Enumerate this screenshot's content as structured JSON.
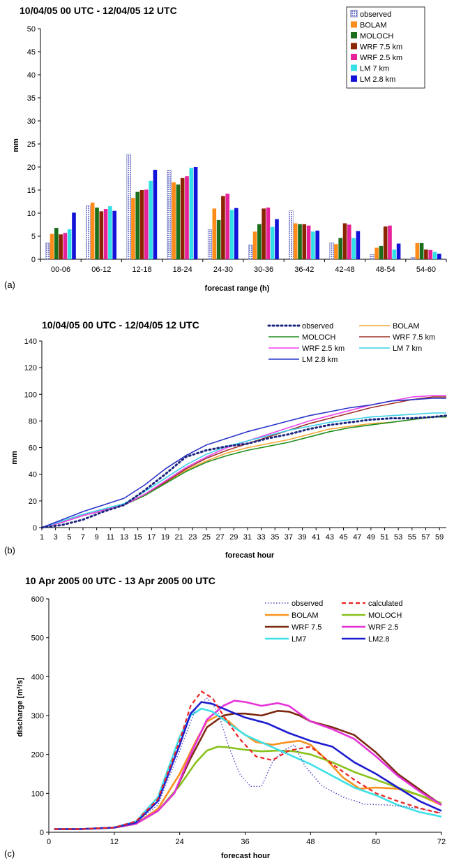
{
  "chart_data": [
    {
      "type": "bar",
      "title": "10/04/05 00 UTC - 12/04/05 12 UTC",
      "panel_label": "(a)",
      "xlabel": "forecast range (h)",
      "ylabel": "mm",
      "ylim": [
        0,
        50
      ],
      "yticks": [
        "0",
        "5",
        "10",
        "15",
        "20",
        "25",
        "30",
        "35",
        "40",
        "45",
        "50"
      ],
      "legend_position": "top-right",
      "categories": [
        "00-06",
        "06-12",
        "12-18",
        "18-24",
        "24-30",
        "30-36",
        "36-42",
        "42-48",
        "48-54",
        "54-60"
      ],
      "series": [
        {
          "name": "observed",
          "color": "#aab0e0",
          "values": [
            3.5,
            11.6,
            22.8,
            19.3,
            6.4,
            3.1,
            10.5,
            3.6,
            1.0,
            0.4
          ]
        },
        {
          "name": "BOLAM",
          "color": "#ff8c1a",
          "values": [
            5.5,
            12.3,
            13.3,
            16.7,
            11.0,
            6.0,
            7.8,
            3.3,
            2.5,
            3.5
          ]
        },
        {
          "name": "MOLOCH",
          "color": "#1a6e1a",
          "values": [
            6.8,
            11.2,
            14.6,
            16.2,
            8.5,
            7.6,
            7.6,
            4.6,
            2.9,
            3.5
          ]
        },
        {
          "name": "WRF 7.5 km",
          "color": "#8b2500",
          "values": [
            5.4,
            10.4,
            15.0,
            17.6,
            13.7,
            11.0,
            7.6,
            7.8,
            7.1,
            2.1
          ]
        },
        {
          "name": "WRF 2.5 km",
          "color": "#e6219a",
          "values": [
            5.7,
            10.9,
            15.1,
            18.0,
            14.2,
            11.2,
            7.3,
            7.5,
            7.3,
            2.0
          ]
        },
        {
          "name": "LM 7 km",
          "color": "#33e0e8",
          "values": [
            6.5,
            11.5,
            17.0,
            19.8,
            10.7,
            7.0,
            6.0,
            4.6,
            2.1,
            1.6
          ]
        },
        {
          "name": "LM 2.8 km",
          "color": "#1212d9",
          "values": [
            10.1,
            10.5,
            19.4,
            20.0,
            11.1,
            8.7,
            6.2,
            6.1,
            3.4,
            1.2
          ]
        }
      ]
    },
    {
      "type": "line",
      "title": "10/04/05 00 UTC - 12/04/05 12 UTC",
      "panel_label": "(b)",
      "xlabel": "forecast hour",
      "ylabel": "mm",
      "ylim": [
        0,
        140
      ],
      "xlim": [
        1,
        60
      ],
      "yticks": [
        "0",
        "20",
        "40",
        "60",
        "80",
        "100",
        "120",
        "140"
      ],
      "xticks": [
        "1",
        "3",
        "5",
        "7",
        "9",
        "11",
        "13",
        "15",
        "17",
        "19",
        "21",
        "23",
        "25",
        "27",
        "29",
        "31",
        "33",
        "35",
        "37",
        "39",
        "41",
        "43",
        "45",
        "47",
        "49",
        "51",
        "53",
        "55",
        "57",
        "59"
      ],
      "legend_position": "top-right",
      "series": [
        {
          "name": "observed",
          "color": "#1a237e",
          "style": "dotted",
          "x": [
            1,
            4,
            7,
            10,
            13,
            16,
            19,
            22,
            25,
            28,
            31,
            34,
            37,
            40,
            43,
            46,
            49,
            52,
            55,
            58,
            60
          ],
          "y": [
            0,
            2,
            6,
            12,
            17,
            28,
            40,
            53,
            58,
            61,
            63,
            67,
            70,
            74,
            77,
            79,
            81,
            82,
            82,
            83,
            84
          ]
        },
        {
          "name": "BOLAM",
          "color": "#f4a535",
          "style": "solid",
          "x": [
            1,
            4,
            7,
            10,
            13,
            16,
            19,
            22,
            25,
            28,
            31,
            34,
            37,
            40,
            43,
            46,
            49,
            52,
            55,
            58,
            60
          ],
          "y": [
            0,
            4,
            9,
            13,
            17,
            25,
            34,
            43,
            50,
            56,
            60,
            63,
            66,
            70,
            74,
            76,
            78,
            79,
            81,
            83,
            84
          ]
        },
        {
          "name": "MOLOCH",
          "color": "#1f8f1f",
          "style": "solid",
          "x": [
            1,
            4,
            7,
            10,
            13,
            16,
            19,
            22,
            25,
            28,
            31,
            34,
            37,
            40,
            43,
            46,
            49,
            52,
            55,
            58,
            60
          ],
          "y": [
            0,
            4,
            9,
            13,
            17,
            24,
            33,
            42,
            49,
            54,
            58,
            61,
            64,
            68,
            72,
            75,
            77,
            79,
            81,
            83,
            83
          ]
        },
        {
          "name": "WRF 7.5 km",
          "color": "#a0302a",
          "style": "solid",
          "x": [
            1,
            4,
            7,
            10,
            13,
            16,
            19,
            22,
            25,
            28,
            31,
            34,
            37,
            40,
            43,
            46,
            49,
            52,
            55,
            58,
            60
          ],
          "y": [
            0,
            4,
            9,
            13,
            17,
            25,
            34,
            44,
            52,
            58,
            63,
            68,
            73,
            78,
            82,
            86,
            90,
            93,
            96,
            98,
            98
          ]
        },
        {
          "name": "WRF 2.5 km",
          "color": "#ee44ee",
          "style": "solid",
          "x": [
            1,
            4,
            7,
            10,
            13,
            16,
            19,
            22,
            25,
            28,
            31,
            34,
            37,
            40,
            43,
            46,
            49,
            52,
            55,
            58,
            60
          ],
          "y": [
            0,
            4,
            9,
            13,
            17,
            25,
            35,
            45,
            53,
            60,
            65,
            70,
            75,
            80,
            84,
            88,
            92,
            95,
            98,
            99,
            99
          ]
        },
        {
          "name": "LM 7 km",
          "color": "#3ed0e8",
          "style": "solid",
          "x": [
            1,
            4,
            7,
            10,
            13,
            16,
            19,
            22,
            25,
            28,
            31,
            34,
            37,
            40,
            43,
            46,
            49,
            52,
            55,
            58,
            60
          ],
          "y": [
            0,
            5,
            10,
            14,
            18,
            27,
            37,
            47,
            55,
            61,
            65,
            69,
            73,
            76,
            79,
            81,
            83,
            84,
            85,
            86,
            86
          ]
        },
        {
          "name": "LM 2.8 km",
          "color": "#2a34c8",
          "style": "solid",
          "x": [
            1,
            4,
            7,
            10,
            13,
            16,
            19,
            22,
            25,
            28,
            31,
            34,
            37,
            40,
            43,
            46,
            49,
            52,
            55,
            58,
            60
          ],
          "y": [
            0,
            6,
            12,
            17,
            22,
            32,
            44,
            54,
            62,
            67,
            72,
            76,
            80,
            84,
            87,
            90,
            92,
            95,
            96,
            97,
            97
          ]
        }
      ]
    },
    {
      "type": "line",
      "title": "10 Apr 2005 00 UTC - 13 Apr 2005 00 UTC",
      "panel_label": "(c)",
      "xlabel": "forecast hour",
      "ylabel": "discharge [m³/s]",
      "ylim": [
        0,
        600
      ],
      "xlim": [
        0,
        72
      ],
      "yticks": [
        "0",
        "100",
        "200",
        "300",
        "400",
        "500",
        "600"
      ],
      "xticks": [
        "0",
        "12",
        "24",
        "36",
        "48",
        "60",
        "72"
      ],
      "legend_position": "top-right",
      "series": [
        {
          "name": "observed",
          "color": "#4a4ac0",
          "style": "dotted",
          "x": [
            1,
            6,
            12,
            16,
            20,
            24,
            27,
            29,
            31,
            33,
            35,
            37,
            39,
            41,
            43,
            45,
            47,
            50,
            54,
            58,
            62,
            66,
            70,
            72
          ],
          "y": [
            8,
            8,
            12,
            25,
            70,
            210,
            320,
            345,
            310,
            220,
            150,
            118,
            118,
            180,
            210,
            225,
            170,
            120,
            90,
            72,
            70,
            65,
            55,
            50
          ]
        },
        {
          "name": "calculated",
          "color": "#ee2222",
          "style": "dashed",
          "x": [
            1,
            6,
            12,
            16,
            20,
            24,
            26,
            28,
            30,
            32,
            35,
            38,
            41,
            44,
            48,
            52,
            56,
            60,
            64,
            68,
            72
          ],
          "y": [
            8,
            8,
            12,
            28,
            85,
            235,
            325,
            362,
            345,
            300,
            240,
            195,
            185,
            210,
            220,
            175,
            135,
            100,
            80,
            62,
            48
          ]
        },
        {
          "name": "BOLAM",
          "color": "#f7921e",
          "style": "solid",
          "x": [
            1,
            6,
            12,
            16,
            20,
            24,
            27,
            29,
            31,
            33,
            35,
            38,
            41,
            44,
            46,
            48,
            51,
            54,
            57,
            60,
            64,
            68,
            72
          ],
          "y": [
            8,
            8,
            12,
            22,
            60,
            150,
            235,
            285,
            300,
            285,
            260,
            232,
            225,
            232,
            235,
            225,
            185,
            140,
            112,
            115,
            112,
            95,
            70
          ]
        },
        {
          "name": "MOLOCH",
          "color": "#88c21c",
          "style": "solid",
          "x": [
            1,
            6,
            12,
            16,
            20,
            24,
            27,
            29,
            31,
            33,
            36,
            39,
            42,
            45,
            48,
            52,
            56,
            60,
            64,
            68,
            72
          ],
          "y": [
            8,
            8,
            12,
            22,
            55,
            120,
            180,
            210,
            220,
            218,
            212,
            208,
            210,
            208,
            200,
            180,
            155,
            135,
            115,
            95,
            75
          ]
        },
        {
          "name": "WRF 7.5",
          "color": "#7d2a12",
          "style": "solid",
          "x": [
            1,
            6,
            12,
            16,
            20,
            23,
            26,
            29,
            32,
            34,
            36,
            39,
            42,
            44,
            46,
            48,
            52,
            56,
            60,
            64,
            68,
            72
          ],
          "y": [
            8,
            8,
            12,
            22,
            55,
            100,
            190,
            270,
            300,
            305,
            305,
            300,
            312,
            310,
            300,
            285,
            270,
            250,
            205,
            150,
            110,
            70
          ]
        },
        {
          "name": "WRF 2.5",
          "color": "#e633d8",
          "style": "solid",
          "x": [
            1,
            6,
            12,
            16,
            20,
            23,
            26,
            29,
            32,
            34,
            36,
            39,
            42,
            44,
            46,
            48,
            52,
            56,
            60,
            64,
            68,
            72
          ],
          "y": [
            8,
            8,
            12,
            22,
            55,
            100,
            200,
            290,
            325,
            338,
            335,
            325,
            332,
            325,
            305,
            285,
            265,
            240,
            195,
            145,
            105,
            70
          ]
        },
        {
          "name": "LM7",
          "color": "#3ee0e8",
          "style": "solid",
          "x": [
            1,
            6,
            12,
            16,
            20,
            24,
            26,
            28,
            30,
            33,
            36,
            40,
            44,
            48,
            52,
            56,
            60,
            64,
            68,
            72
          ],
          "y": [
            8,
            8,
            12,
            28,
            90,
            245,
            300,
            318,
            310,
            280,
            250,
            225,
            200,
            175,
            145,
            115,
            95,
            70,
            52,
            40
          ]
        },
        {
          "name": "LM2.8",
          "color": "#1c1ccf",
          "style": "solid",
          "x": [
            1,
            6,
            12,
            16,
            20,
            24,
            26,
            28,
            30,
            33,
            36,
            40,
            44,
            48,
            52,
            56,
            60,
            64,
            68,
            72
          ],
          "y": [
            8,
            8,
            12,
            25,
            80,
            225,
            305,
            335,
            330,
            312,
            295,
            280,
            255,
            235,
            220,
            180,
            150,
            115,
            80,
            55
          ]
        }
      ]
    }
  ]
}
